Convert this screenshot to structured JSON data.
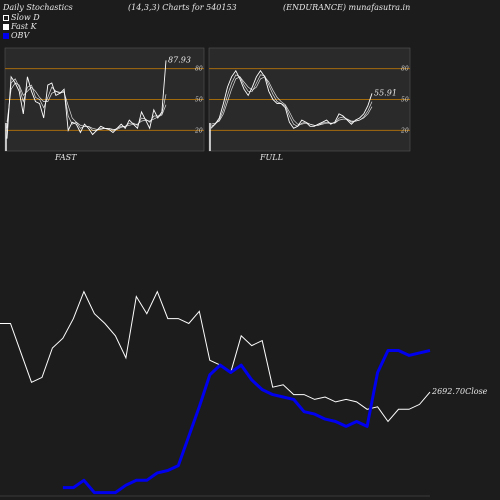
{
  "header": {
    "left": "Daily Stochastics",
    "center": "(14,3,3) Charts for 540153",
    "right": "(ENDURANCE) munafasutra.in"
  },
  "legend": {
    "slow": "Slow  D",
    "fast": "Fast K",
    "obv": "OBV"
  },
  "colors": {
    "background": "#1c1c1c",
    "panel": "#2a2a2a",
    "level_line": "#a36a0c",
    "stoch_line": "#ffffff",
    "obv": "#0000ee",
    "close": "#ffffff"
  },
  "chart_data": [
    {
      "type": "line",
      "panel": "FAST",
      "ylim": [
        0,
        100
      ],
      "levels": [
        20,
        50,
        80
      ],
      "level_labels": [
        "20",
        "50",
        "80"
      ],
      "last_value_label": "87.93",
      "series": [
        {
          "values": [
            12,
            72,
            66,
            58,
            36,
            72,
            58,
            48,
            46,
            32,
            64,
            66,
            54,
            56,
            60,
            20,
            28,
            26,
            18,
            26,
            22,
            16,
            20,
            24,
            22,
            21,
            18,
            22,
            26,
            22,
            30,
            26,
            22,
            38,
            30,
            22,
            40,
            32,
            38,
            87.93
          ]
        },
        {
          "values": [
            22,
            66,
            70,
            62,
            48,
            62,
            64,
            52,
            50,
            42,
            52,
            62,
            58,
            56,
            58,
            34,
            26,
            28,
            22,
            24,
            24,
            20,
            20,
            22,
            22,
            22,
            20,
            22,
            24,
            24,
            27,
            27,
            25,
            32,
            31,
            28,
            34,
            34,
            36,
            55
          ]
        },
        {
          "values": [
            28,
            60,
            66,
            64,
            54,
            58,
            62,
            58,
            52,
            48,
            48,
            56,
            58,
            57,
            57,
            44,
            32,
            28,
            25,
            24,
            24,
            22,
            21,
            21,
            22,
            22,
            21,
            21,
            23,
            24,
            25,
            26,
            26,
            29,
            30,
            29,
            31,
            33,
            35,
            45
          ]
        }
      ]
    },
    {
      "type": "line",
      "panel": "FULL",
      "ylim": [
        0,
        100
      ],
      "levels": [
        20,
        50,
        80
      ],
      "level_labels": [
        "20",
        "50",
        "80"
      ],
      "last_value_label": "55.91",
      "series": [
        {
          "values": [
            22,
            26,
            32,
            46,
            62,
            72,
            78,
            70,
            60,
            54,
            62,
            72,
            78,
            72,
            58,
            50,
            46,
            46,
            42,
            28,
            22,
            24,
            30,
            28,
            24,
            24,
            26,
            28,
            30,
            26,
            28,
            36,
            34,
            30,
            26,
            30,
            32,
            36,
            44,
            55.91
          ]
        },
        {
          "values": [
            24,
            26,
            30,
            40,
            54,
            66,
            74,
            72,
            64,
            58,
            58,
            66,
            74,
            73,
            64,
            55,
            48,
            46,
            44,
            34,
            26,
            24,
            27,
            28,
            26,
            25,
            25,
            27,
            28,
            27,
            27,
            32,
            33,
            31,
            28,
            29,
            30,
            33,
            39,
            48
          ]
        },
        {
          "values": [
            26,
            27,
            29,
            36,
            48,
            60,
            70,
            72,
            67,
            62,
            59,
            62,
            70,
            72,
            67,
            59,
            52,
            48,
            45,
            38,
            30,
            26,
            26,
            27,
            26,
            25,
            25,
            26,
            27,
            27,
            27,
            30,
            31,
            31,
            29,
            29,
            30,
            32,
            36,
            43
          ]
        }
      ]
    },
    {
      "type": "line",
      "panel": "price",
      "close_label": "2692.70Close",
      "series": [
        {
          "name": "Close",
          "values": [
            0.7,
            0.7,
            0.58,
            0.46,
            0.48,
            0.6,
            0.64,
            0.72,
            0.83,
            0.74,
            0.7,
            0.65,
            0.56,
            0.81,
            0.74,
            0.83,
            0.72,
            0.72,
            0.7,
            0.75,
            0.55,
            0.53,
            0.5,
            0.65,
            0.61,
            0.63,
            0.44,
            0.45,
            0.41,
            0.41,
            0.39,
            0.4,
            0.38,
            0.39,
            0.38,
            0.35,
            0.36,
            0.3,
            0.35,
            0.35,
            0.37,
            0.42
          ]
        },
        {
          "name": "OBV",
          "values": [
            null,
            null,
            null,
            null,
            null,
            null,
            0.03,
            0.03,
            0.06,
            0.01,
            0.01,
            0.01,
            0.04,
            0.06,
            0.06,
            0.09,
            0.1,
            0.12,
            0.24,
            0.36,
            0.49,
            0.53,
            0.5,
            0.53,
            0.47,
            0.43,
            0.41,
            0.4,
            0.39,
            0.34,
            0.33,
            0.31,
            0.3,
            0.28,
            0.3,
            0.28,
            0.5,
            0.59,
            0.59,
            0.57,
            0.58,
            0.59
          ]
        }
      ]
    }
  ],
  "panel_labels": {
    "fast": "FAST",
    "full": "FULL"
  }
}
